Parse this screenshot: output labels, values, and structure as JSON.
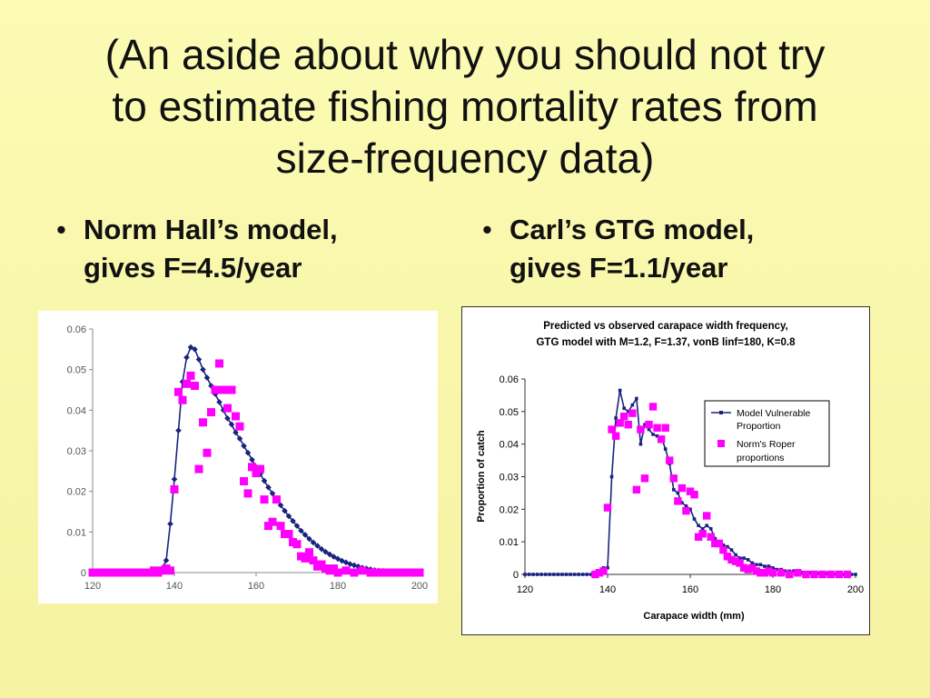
{
  "slide": {
    "title_lines": [
      "(An aside about why you should not try",
      "to estimate fishing mortality rates from",
      "size-frequency data)"
    ],
    "bullet_symbol": "•",
    "bullets": [
      {
        "lines": [
          "Norm Hall’s model,",
          "gives F=4.5/year"
        ]
      },
      {
        "lines": [
          "Carl’s GTG model,",
          "gives F=1.1/year"
        ]
      }
    ]
  },
  "colors": {
    "background": "#f9f7aa",
    "model_line": "#1a237e",
    "observed_points": "#ff00ff"
  },
  "chart_data": [
    {
      "type": "line",
      "title": "",
      "xlabel": "",
      "ylabel": "",
      "xlim": [
        120,
        200
      ],
      "ylim": [
        0,
        0.06
      ],
      "x_ticks": [
        120,
        140,
        160,
        180,
        200
      ],
      "y_ticks": [
        "0",
        "0.01",
        "0.02",
        "0.03",
        "0.04",
        "0.05",
        "0.06"
      ],
      "legend": "none",
      "grid": false,
      "series": [
        {
          "marker": "diamond",
          "style": "line-markers",
          "x": [
            120,
            121,
            122,
            123,
            124,
            125,
            126,
            127,
            128,
            129,
            130,
            131,
            132,
            133,
            134,
            135,
            136,
            137,
            138,
            139,
            140,
            141,
            142,
            143,
            144,
            145,
            146,
            147,
            148,
            149,
            150,
            151,
            152,
            153,
            154,
            155,
            156,
            157,
            158,
            159,
            160,
            161,
            162,
            163,
            164,
            165,
            166,
            167,
            168,
            169,
            170,
            171,
            172,
            173,
            174,
            175,
            176,
            177,
            178,
            179,
            180,
            181,
            182,
            183,
            184,
            185,
            186,
            187,
            188,
            189,
            190,
            191,
            192,
            193,
            194,
            195,
            196,
            197,
            198,
            199,
            200
          ],
          "y": [
            0,
            0,
            0,
            0,
            0,
            0,
            0,
            0,
            0,
            0,
            0,
            0,
            0,
            0,
            0,
            0,
            0.0002,
            0.001,
            0.003,
            0.012,
            0.023,
            0.035,
            0.047,
            0.053,
            0.0555,
            0.055,
            0.0525,
            0.05,
            0.048,
            0.046,
            0.044,
            0.042,
            0.04,
            0.038,
            0.0365,
            0.0345,
            0.033,
            0.0312,
            0.0295,
            0.0278,
            0.026,
            0.0243,
            0.0226,
            0.021,
            0.0195,
            0.018,
            0.0166,
            0.0152,
            0.0139,
            0.0127,
            0.0115,
            0.0103,
            0.0093,
            0.0083,
            0.0074,
            0.0066,
            0.0058,
            0.0051,
            0.0045,
            0.0039,
            0.0034,
            0.0029,
            0.0025,
            0.0021,
            0.0018,
            0.0015,
            0.0012,
            0.001,
            0.0008,
            0.0006,
            0.0005,
            0.0004,
            0.0003,
            0.0002,
            0.0002,
            0.0001,
            0.0001,
            0,
            0,
            0,
            0
          ]
        },
        {
          "marker": "square",
          "style": "markers",
          "x": [
            120,
            122,
            124,
            126,
            128,
            130,
            132,
            134,
            135,
            136,
            137,
            138,
            139,
            140,
            141,
            142,
            143,
            144,
            145,
            146,
            147,
            148,
            149,
            150,
            151,
            152,
            153,
            154,
            155,
            156,
            157,
            158,
            159,
            160,
            161,
            162,
            163,
            164,
            165,
            166,
            167,
            168,
            169,
            170,
            171,
            172,
            173,
            174,
            175,
            176,
            177,
            178,
            179,
            180,
            182,
            184,
            186,
            188,
            190,
            192,
            194,
            196,
            198,
            200
          ],
          "y": [
            0,
            0,
            0,
            0,
            0,
            0,
            0,
            0,
            0.0005,
            0,
            0.0005,
            0.001,
            0.0005,
            0.0205,
            0.0445,
            0.0425,
            0.0465,
            0.0485,
            0.046,
            0.0255,
            0.037,
            0.0295,
            0.0395,
            0.045,
            0.0515,
            0.045,
            0.0405,
            0.045,
            0.0385,
            0.036,
            0.0225,
            0.0195,
            0.026,
            0.0245,
            0.0255,
            0.018,
            0.0115,
            0.0125,
            0.018,
            0.0115,
            0.0095,
            0.0095,
            0.0075,
            0.007,
            0.004,
            0.0035,
            0.005,
            0.003,
            0.0015,
            0.002,
            0.001,
            0.0005,
            0.001,
            0,
            0.0005,
            0,
            0.0005,
            0,
            0,
            0,
            0,
            0,
            0,
            0
          ]
        }
      ]
    },
    {
      "type": "line",
      "title": "Predicted vs observed carapace width frequency,",
      "subtitle": "GTG model with M=1.2, F=1.37, vonB linf=180, K=0.8",
      "xlabel": "Carapace width (mm)",
      "ylabel": "Proportion of catch",
      "xlim": [
        120,
        200
      ],
      "ylim": [
        0,
        0.06
      ],
      "x_ticks": [
        120,
        140,
        160,
        180,
        200
      ],
      "y_ticks": [
        "0",
        "0.01",
        "0.02",
        "0.03",
        "0.04",
        "0.05",
        "0.06"
      ],
      "legend": "top-right",
      "grid": false,
      "series": [
        {
          "name": "Model Vulnerable Proportion",
          "name_lines": [
            "Model Vulnerable",
            "Proportion"
          ],
          "marker": "small-square",
          "style": "line-markers",
          "x": [
            120,
            121,
            122,
            123,
            124,
            125,
            126,
            127,
            128,
            129,
            130,
            131,
            132,
            133,
            134,
            135,
            136,
            137,
            138,
            139,
            140,
            141,
            142,
            143,
            144,
            145,
            146,
            147,
            148,
            149,
            150,
            151,
            152,
            153,
            154,
            155,
            156,
            157,
            158,
            159,
            160,
            161,
            162,
            163,
            164,
            165,
            166,
            167,
            168,
            169,
            170,
            171,
            172,
            173,
            174,
            175,
            176,
            177,
            178,
            179,
            180,
            181,
            182,
            183,
            184,
            185,
            186,
            187,
            188,
            189,
            190,
            191,
            192,
            193,
            194,
            195,
            196,
            197,
            198,
            199,
            200
          ],
          "y": [
            0,
            0,
            0,
            0,
            0,
            0,
            0,
            0,
            0,
            0,
            0,
            0,
            0,
            0,
            0,
            0,
            0,
            0,
            0.001,
            0.002,
            0.002,
            0.03,
            0.048,
            0.0565,
            0.051,
            0.05,
            0.052,
            0.054,
            0.04,
            0.046,
            0.0445,
            0.043,
            0.0425,
            0.042,
            0.0385,
            0.034,
            0.026,
            0.025,
            0.022,
            0.021,
            0.02,
            0.017,
            0.015,
            0.014,
            0.015,
            0.014,
            0.011,
            0.0095,
            0.009,
            0.0085,
            0.0075,
            0.006,
            0.005,
            0.005,
            0.0045,
            0.0035,
            0.003,
            0.003,
            0.0025,
            0.0025,
            0.002,
            0.0015,
            0.0015,
            0.001,
            0.001,
            0.001,
            0.0008,
            0.0006,
            0.0005,
            0.0005,
            0.0004,
            0.0003,
            0.0003,
            0.0002,
            0.0002,
            0.0001,
            0.0001,
            0,
            0,
            0,
            0
          ]
        },
        {
          "name": "Norm's Roper proportions",
          "name_lines": [
            "Norm's Roper",
            "proportions"
          ],
          "marker": "square",
          "style": "markers",
          "x": [
            137,
            138,
            139,
            140,
            141,
            142,
            143,
            144,
            145,
            146,
            147,
            148,
            149,
            150,
            151,
            152,
            153,
            154,
            155,
            156,
            157,
            158,
            159,
            160,
            161,
            162,
            163,
            164,
            165,
            166,
            167,
            168,
            169,
            170,
            171,
            172,
            173,
            174,
            175,
            176,
            177,
            178,
            179,
            180,
            182,
            184,
            186,
            188,
            190,
            192,
            194,
            196,
            198
          ],
          "y": [
            0,
            0.0005,
            0.001,
            0.0205,
            0.0445,
            0.0425,
            0.0465,
            0.0485,
            0.046,
            0.0495,
            0.026,
            0.0445,
            0.0295,
            0.046,
            0.0515,
            0.045,
            0.0415,
            0.045,
            0.035,
            0.0295,
            0.0225,
            0.0265,
            0.0195,
            0.0255,
            0.0245,
            0.0115,
            0.0125,
            0.018,
            0.0115,
            0.0095,
            0.0095,
            0.0075,
            0.0055,
            0.0045,
            0.004,
            0.0035,
            0.002,
            0.0015,
            0.002,
            0.001,
            0.0005,
            0.0005,
            0.001,
            0.0005,
            0.0005,
            0,
            0.0005,
            0,
            0,
            0,
            0,
            0,
            0
          ]
        }
      ]
    }
  ]
}
